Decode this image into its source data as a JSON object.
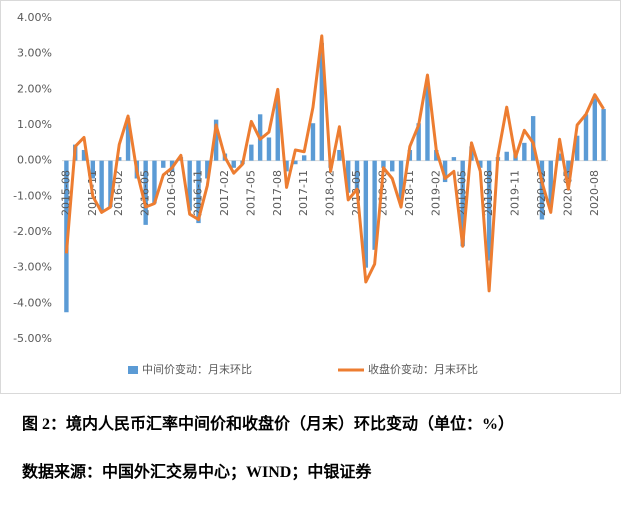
{
  "chart_data": {
    "type": "bar-line",
    "categories": [
      "2015-08",
      null,
      null,
      "2015-11",
      null,
      null,
      "2016-02",
      null,
      null,
      "2016-05",
      null,
      null,
      "2016-08",
      null,
      null,
      "2016-11",
      null,
      null,
      "2017-02",
      null,
      null,
      "2017-05",
      null,
      null,
      "2017-08",
      null,
      null,
      "2017-11",
      null,
      null,
      "2018-02",
      null,
      null,
      "2018-05",
      null,
      null,
      "2018-08",
      null,
      null,
      "2018-11",
      null,
      null,
      "2019-02",
      null,
      null,
      "2019-05",
      null,
      null,
      "2019-08",
      null,
      null,
      "2019-11",
      null,
      null,
      "2020-02",
      null,
      null,
      "2020-05",
      null,
      null,
      "2020-08",
      null
    ],
    "series": [
      {
        "name": "中间价变动：月末环比",
        "color": "#5b9bd5",
        "kind": "bar",
        "values": [
          -4.25,
          0.45,
          0.3,
          -0.5,
          -1.4,
          -1.3,
          0.1,
          1.2,
          -0.5,
          -1.8,
          -1.2,
          -0.2,
          -0.3,
          0.1,
          -1.4,
          -1.75,
          -0.5,
          1.15,
          0.2,
          -0.2,
          -0.1,
          0.45,
          1.3,
          0.65,
          1.8,
          -0.3,
          -0.1,
          0.15,
          1.05,
          3.3,
          -0.2,
          0.3,
          -0.9,
          -0.9,
          -3.0,
          -2.5,
          -0.2,
          -0.3,
          -1.1,
          0.3,
          1.05,
          2.1,
          0.3,
          -0.6,
          0.1,
          -2.4,
          0.4,
          -0.2,
          -2.8,
          0.1,
          0.25,
          0.2,
          0.5,
          1.25,
          -1.65,
          -1.3,
          0.2,
          -0.5,
          0.7,
          1.3,
          1.75,
          1.45
        ]
      },
      {
        "name": "收盘价变动：月末环比",
        "color": "#ed7d31",
        "kind": "line",
        "values": [
          -2.6,
          0.4,
          0.65,
          -1.0,
          -1.45,
          -1.3,
          0.45,
          1.25,
          -0.3,
          -1.3,
          -1.2,
          -0.4,
          -0.2,
          0.15,
          -1.5,
          -1.65,
          -0.7,
          1.0,
          0.1,
          -0.35,
          -0.1,
          1.1,
          0.6,
          0.8,
          2.0,
          -0.75,
          0.3,
          0.25,
          1.5,
          3.5,
          -0.3,
          0.95,
          -1.1,
          -0.8,
          -3.4,
          -2.9,
          -0.2,
          -0.5,
          -1.3,
          0.4,
          1.0,
          2.4,
          0.3,
          -0.5,
          -0.3,
          -2.4,
          0.5,
          -0.3,
          -3.65,
          0.15,
          1.5,
          0.1,
          0.85,
          0.5,
          -0.6,
          -1.45,
          0.6,
          -0.8,
          1.0,
          1.3,
          1.85,
          1.45
        ]
      }
    ],
    "ylim": [
      -5,
      4
    ],
    "yticks": [
      {
        "value": 4,
        "label": "4.00%"
      },
      {
        "value": 3,
        "label": "3.00%"
      },
      {
        "value": 2,
        "label": "2.00%"
      },
      {
        "value": 1,
        "label": "1.00%"
      },
      {
        "value": 0,
        "label": "0.00%"
      },
      {
        "value": -1,
        "label": "-1.00%"
      },
      {
        "value": -2,
        "label": "-2.00%"
      },
      {
        "value": -3,
        "label": "-3.00%"
      },
      {
        "value": -4,
        "label": "-4.00%"
      },
      {
        "value": -5,
        "label": "-5.00%"
      }
    ],
    "legend": "bottom",
    "caption": "图 2：境内人民币汇率中间价和收盘价（月末）环比变动（单位：%）",
    "source": "数据来源：中国外汇交易中心；WIND；中银证券"
  }
}
